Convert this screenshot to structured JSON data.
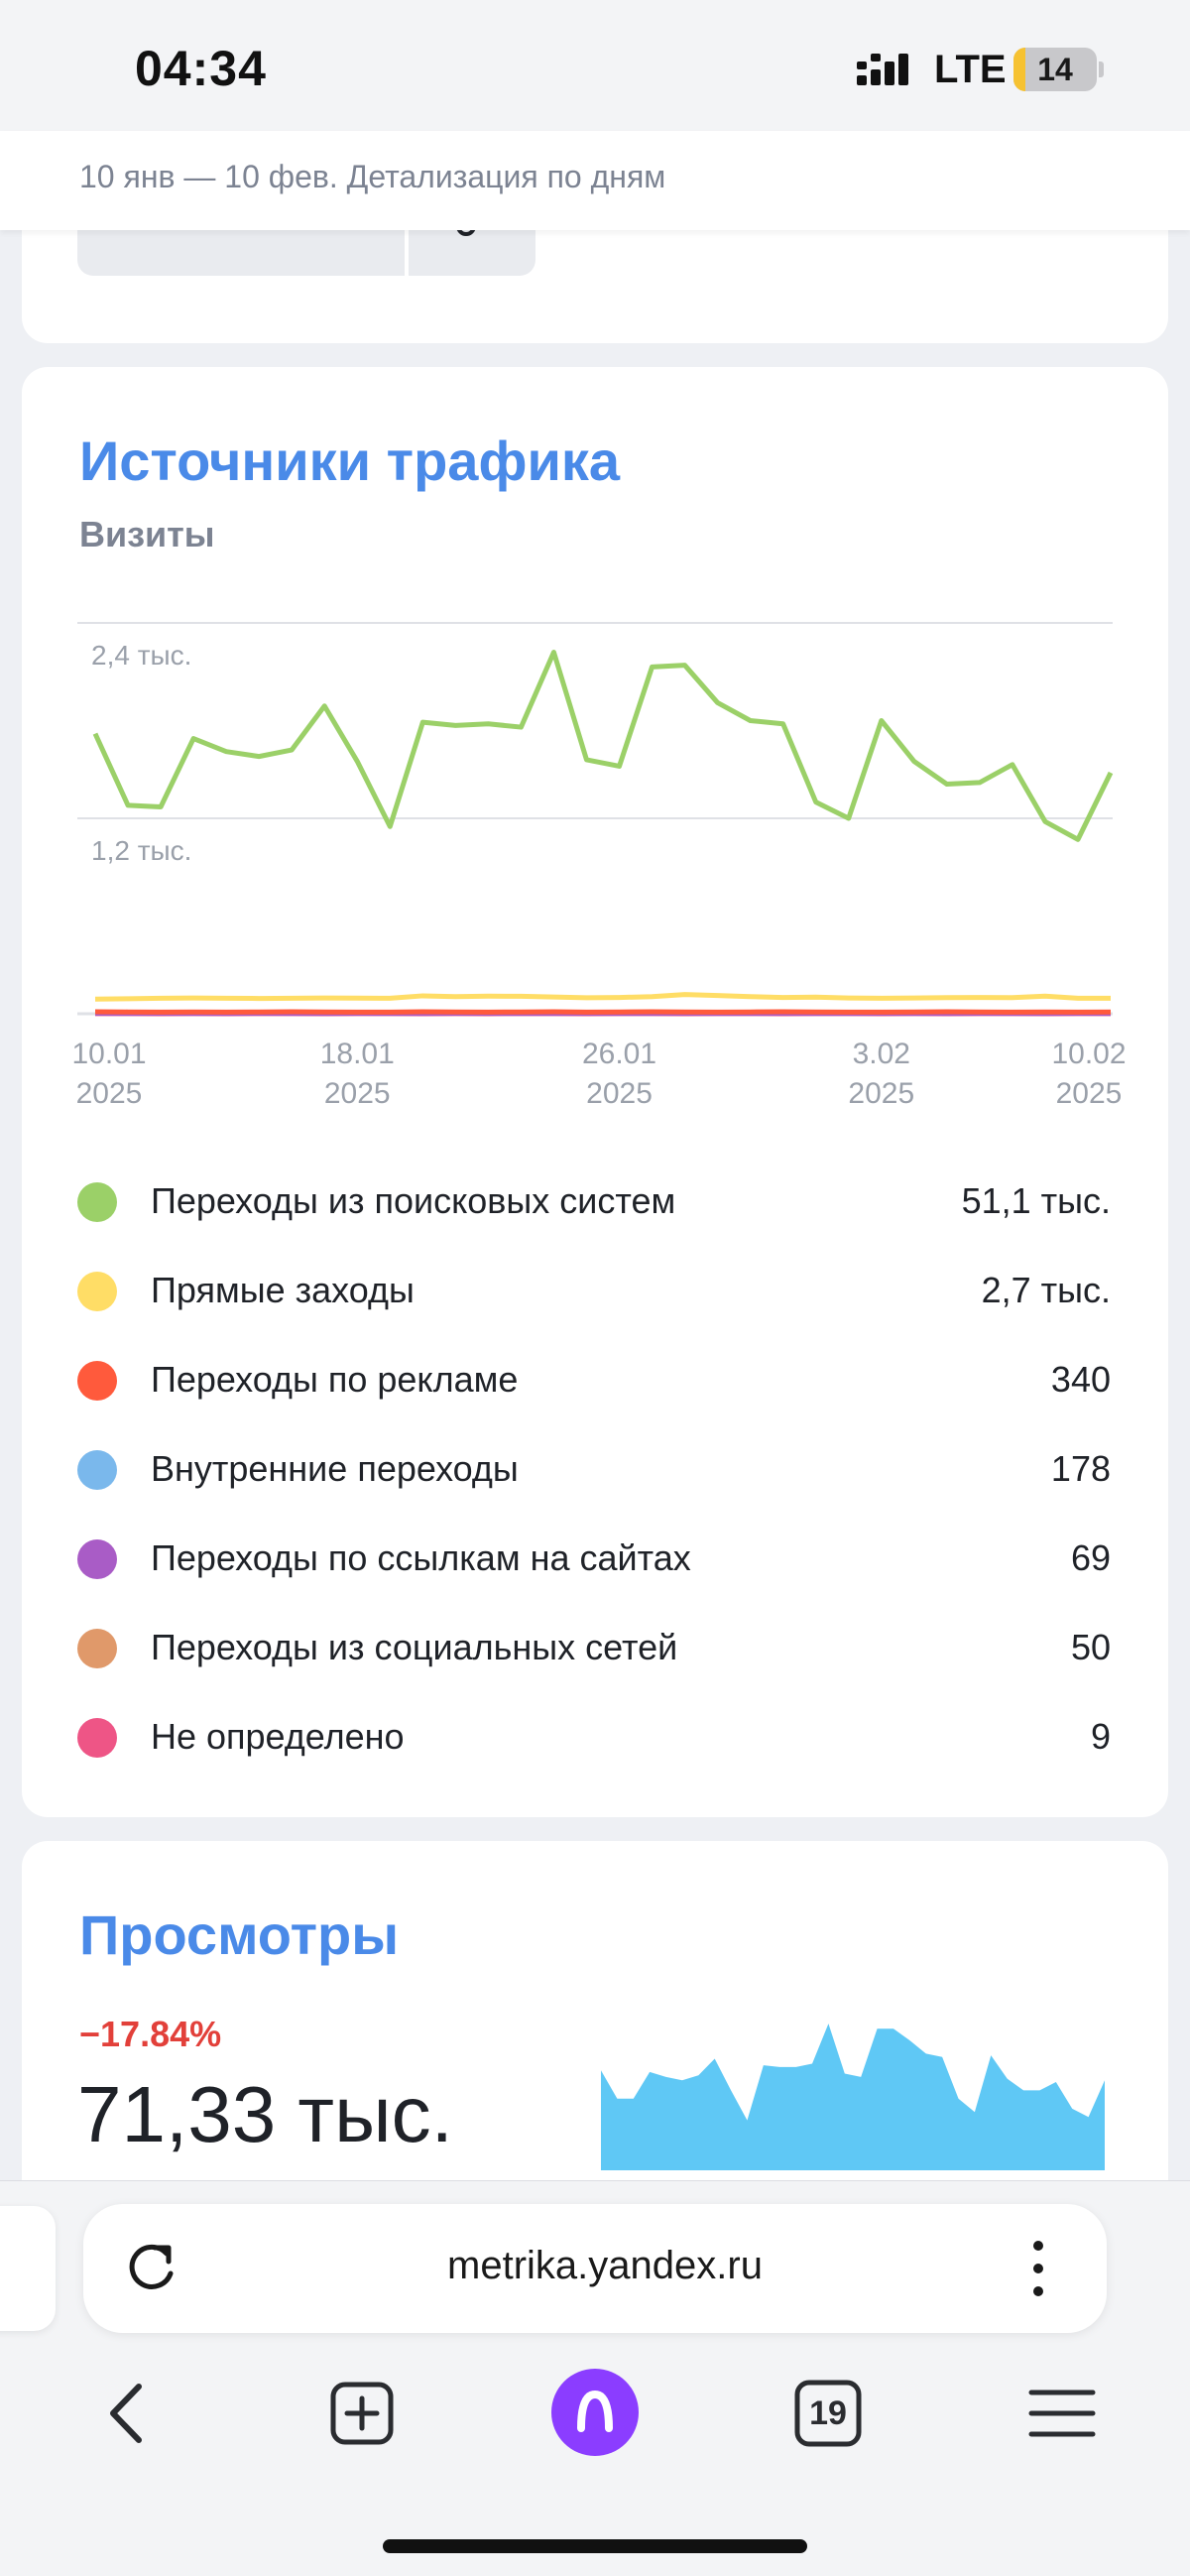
{
  "status_bar": {
    "time": "04:34",
    "network": "LTE",
    "battery": "14",
    "battery_level": 0.14,
    "signal_icon": "signal-bars-icon"
  },
  "subheader": {
    "period": "10 янв — 10 фев. Детализация по дням"
  },
  "traffic": {
    "title": "Источники трафика",
    "subtitle": "Визиты",
    "legend": [
      {
        "name": "Переходы из поисковых систем",
        "value": "51,1 тыс.",
        "color": "#9bd068"
      },
      {
        "name": "Прямые заходы",
        "value": "2,7 тыс.",
        "color": "#ffdd66"
      },
      {
        "name": "Переходы по рекламе",
        "value": "340",
        "color": "#ff5a3c"
      },
      {
        "name": "Внутренние переходы",
        "value": "178",
        "color": "#7ab8ec"
      },
      {
        "name": "Переходы по ссылкам на сайтах",
        "value": "69",
        "color": "#a95cc6"
      },
      {
        "name": "Переходы из социальных сетей",
        "value": "50",
        "color": "#e0996a"
      },
      {
        "name": "Не определено",
        "value": "9",
        "color": "#ee5586"
      }
    ]
  },
  "chart_data": [
    {
      "type": "line",
      "y_tick_labels": [
        "2,4 тыс.",
        "1,2 тыс."
      ],
      "ylim": [
        0,
        2400
      ],
      "grid": true,
      "x_tick_labels": [
        [
          "10.01",
          "2025"
        ],
        [
          "18.01",
          "2025"
        ],
        [
          "26.01",
          "2025"
        ],
        [
          "3.02",
          "2025"
        ],
        [
          "10.02",
          "2025"
        ]
      ],
      "x_tick_index": [
        0,
        8,
        16,
        24,
        31
      ],
      "series": [
        {
          "color": "#9bd068",
          "values": [
            1720,
            1280,
            1270,
            1690,
            1610,
            1580,
            1620,
            1890,
            1550,
            1150,
            1790,
            1770,
            1780,
            1760,
            2220,
            1560,
            1520,
            2130,
            2140,
            1910,
            1800,
            1780,
            1300,
            1200,
            1800,
            1550,
            1410,
            1420,
            1530,
            1180,
            1070,
            1480
          ]
        },
        {
          "color": "#ffdd66",
          "values": [
            90,
            92,
            95,
            97,
            95,
            94,
            95,
            97,
            96,
            95,
            110,
            105,
            108,
            107,
            103,
            98,
            100,
            105,
            118,
            112,
            105,
            100,
            102,
            97,
            95,
            97,
            99,
            100,
            99,
            108,
            95,
            95
          ]
        },
        {
          "color": "#ff5a3c",
          "values": [
            12,
            11,
            10,
            11,
            10,
            11,
            12,
            11,
            10,
            10,
            12,
            11,
            10,
            11,
            12,
            10,
            11,
            12,
            11,
            10,
            11,
            12,
            11,
            10,
            10,
            11,
            12,
            11,
            10,
            11,
            10,
            11
          ]
        },
        {
          "color": "#a95cc6",
          "values": [
            3,
            2,
            3,
            2,
            2,
            3,
            2,
            2,
            3,
            2,
            2,
            3,
            3,
            2,
            2,
            3,
            2,
            2,
            3,
            2,
            2,
            3,
            2,
            2,
            3,
            2,
            2,
            3,
            2,
            2,
            3,
            2
          ]
        },
        {
          "color": "#ee5586",
          "values": [
            1,
            1,
            0,
            1,
            0,
            1,
            1,
            0,
            1,
            1,
            0,
            1,
            0,
            1,
            1,
            0,
            1,
            1,
            0,
            1,
            1,
            0,
            1,
            1,
            0,
            1,
            0,
            1,
            1,
            0,
            1,
            1
          ]
        }
      ]
    },
    {
      "type": "area",
      "color": "#5fc8f5",
      "values": [
        2400,
        2230,
        2230,
        2390,
        2360,
        2340,
        2370,
        2470,
        2280,
        2100,
        2430,
        2420,
        2420,
        2440,
        2680,
        2380,
        2360,
        2650,
        2650,
        2580,
        2500,
        2480,
        2230,
        2150,
        2490,
        2350,
        2280,
        2280,
        2330,
        2170,
        2120,
        2340
      ],
      "ylim": [
        0,
        2800
      ]
    }
  ],
  "views": {
    "title": "Просмотры",
    "change": "−17.84%",
    "value": "71,33 тыс."
  },
  "browser": {
    "url": "metrika.yandex.ru",
    "tabs_count": "19",
    "reload_icon": "reload-icon",
    "more_icon": "more-vertical-icon"
  },
  "nav": {
    "back_icon": "back-chevron-icon",
    "new_tab_icon": "new-tab-plus-icon",
    "alice_icon": "alice-assistant-icon",
    "tabs_icon": "tabs-counter-icon",
    "menu_icon": "menu-hamburger-icon"
  }
}
